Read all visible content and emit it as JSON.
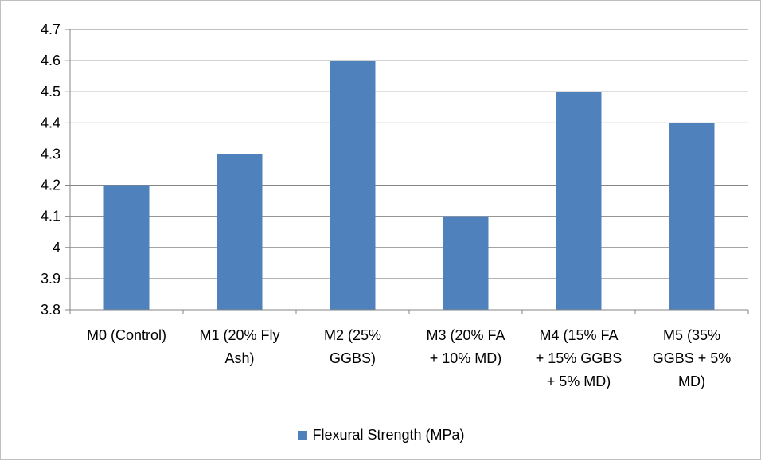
{
  "chart_data": {
    "type": "bar",
    "categories": [
      [
        "M0 (Control)"
      ],
      [
        "M1 (20% Fly",
        "Ash)"
      ],
      [
        "M2 (25%",
        "GGBS)"
      ],
      [
        "M3 (20% FA",
        "+ 10% MD)"
      ],
      [
        "M4 (15% FA",
        "+ 15% GGBS",
        "+ 5% MD)"
      ],
      [
        "M5 (35%",
        "GGBS + 5%",
        "MD)"
      ]
    ],
    "series": [
      {
        "name": "Flexural Strength (MPa)",
        "values": [
          4.2,
          4.3,
          4.6,
          4.1,
          4.5,
          4.4
        ],
        "color": "#4f81bd"
      }
    ],
    "ylim": [
      3.8,
      4.7
    ],
    "yticks": [
      "3.8",
      "3.9",
      "4",
      "4.1",
      "4.2",
      "4.3",
      "4.4",
      "4.5",
      "4.6",
      "4.7"
    ],
    "grid": true,
    "legend_position": "bottom"
  }
}
